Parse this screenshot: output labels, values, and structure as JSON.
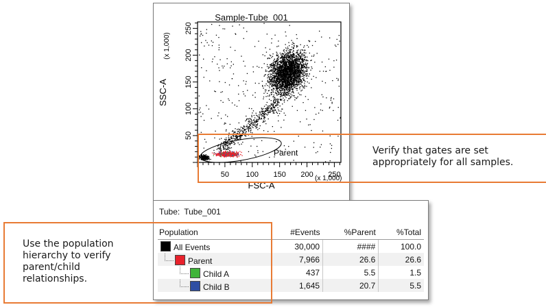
{
  "plot": {
    "title": "Sample-Tube_001",
    "x_axis": {
      "label": "FSC-A",
      "scale_label": "(x 1,000)",
      "ticks": [
        "50",
        "100",
        "150",
        "200",
        "250"
      ]
    },
    "y_axis": {
      "label": "SSC-A",
      "scale_label": "(x 1,000)",
      "ticks": [
        "50",
        "100",
        "150",
        "200",
        "250"
      ]
    },
    "gate_label": "Parent",
    "colors": {
      "all_events": "#000000",
      "parent": "#e8212b",
      "child_a": "#3fb43a",
      "child_b": "#2e4ea3"
    }
  },
  "stats": {
    "tube_label": "Tube:",
    "tube_name": "Tube_001",
    "columns": [
      "Population",
      "#Events",
      "%Parent",
      "%Total"
    ],
    "rows": [
      {
        "name": "All Events",
        "color": "#000000",
        "events": "30,000",
        "parent": "####",
        "total": "100.0",
        "level": 0
      },
      {
        "name": "Parent",
        "color": "#e8212b",
        "events": "7,966",
        "parent": "26.6",
        "total": "26.6",
        "level": 1
      },
      {
        "name": "Child A",
        "color": "#3fb43a",
        "events": "437",
        "parent": "5.5",
        "total": "1.5",
        "level": 2
      },
      {
        "name": "Child B",
        "color": "#2e4ea3",
        "events": "1,645",
        "parent": "20.7",
        "total": "5.5",
        "level": 2
      }
    ]
  },
  "callouts": {
    "gates_note": "Verify that gates are set appropriately for all samples.",
    "hierarchy_note": "Use the population hierarchy to verify parent/child relationships."
  },
  "accent_color": "#e87a33"
}
